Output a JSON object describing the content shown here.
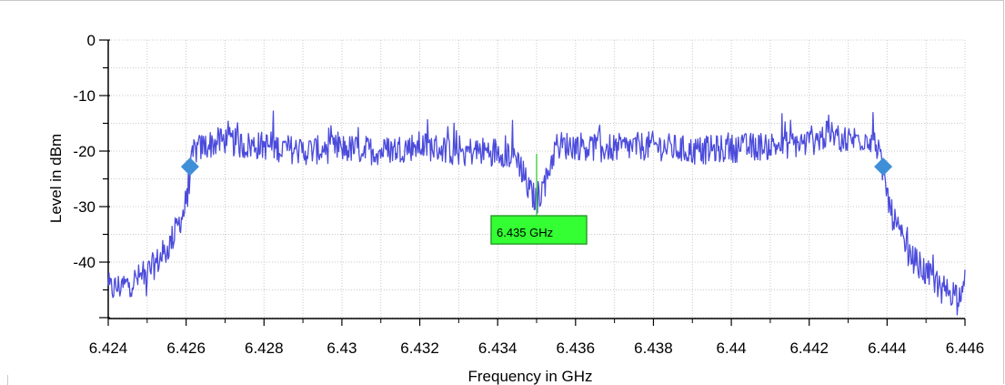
{
  "chart_data": {
    "type": "line",
    "xlabel": "Frequency in GHz",
    "ylabel": "Level in dBm",
    "xlim": [
      6.424,
      6.446
    ],
    "ylim": [
      -50,
      0
    ],
    "x_ticks": [
      "6.424",
      "6.426",
      "6.428",
      "6.43",
      "6.432",
      "6.434",
      "6.436",
      "6.438",
      "6.44",
      "6.442",
      "6.444",
      "6.446"
    ],
    "x_tick_values": [
      6.424,
      6.426,
      6.428,
      6.43,
      6.432,
      6.434,
      6.436,
      6.438,
      6.44,
      6.442,
      6.444,
      6.446
    ],
    "y_ticks": [
      "0",
      "-10",
      "-20",
      "-30",
      "-40"
    ],
    "y_tick_values": [
      0,
      -10,
      -20,
      -30,
      -40
    ],
    "grid": true,
    "series": [
      {
        "color": "#4b4bdc",
        "x": [
          6.424,
          6.4245,
          6.425,
          6.4255,
          6.426,
          6.4261,
          6.4262,
          6.4265,
          6.427,
          6.4275,
          6.428,
          6.429,
          6.43,
          6.431,
          6.432,
          6.433,
          6.434,
          6.4345,
          6.4348,
          6.435,
          6.4352,
          6.4355,
          6.436,
          6.437,
          6.438,
          6.439,
          6.44,
          6.441,
          6.442,
          6.4425,
          6.443,
          6.4435,
          6.4437,
          6.4439,
          6.4441,
          6.4445,
          6.445,
          6.4455,
          6.446
        ],
        "y": [
          -45,
          -44,
          -42,
          -38,
          -30,
          -24,
          -20,
          -19,
          -18,
          -19,
          -19,
          -20,
          -19.5,
          -20,
          -19,
          -20,
          -20,
          -21,
          -27,
          -29,
          -26,
          -19,
          -19,
          -19.5,
          -19,
          -20,
          -19.5,
          -19,
          -18.5,
          -17,
          -18,
          -17.5,
          -18,
          -24,
          -31,
          -38,
          -42,
          -45,
          -46
        ]
      }
    ],
    "markers": [
      {
        "type": "diamond",
        "x": 6.4261,
        "y": -22.8,
        "color": "#3f8fd8"
      },
      {
        "type": "diamond",
        "x": 6.4439,
        "y": -22.8,
        "color": "#3f8fd8"
      }
    ],
    "annotations": [
      {
        "text": "6.435 GHz",
        "x": 6.435,
        "y": -30,
        "label_y": -34.6,
        "background": "#33ff33",
        "border": "#2aa02a",
        "line_color": "#33cc33"
      }
    ]
  }
}
